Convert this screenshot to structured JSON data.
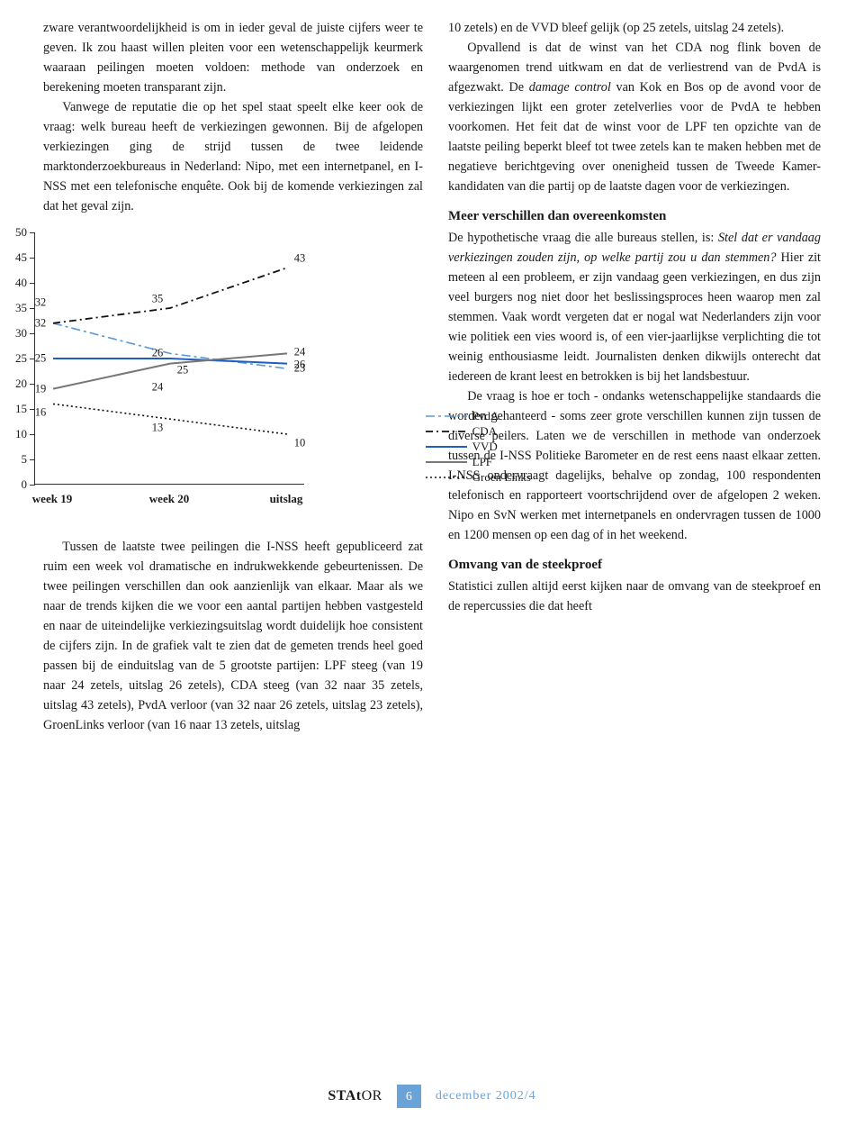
{
  "para1a": "zware verantwoordelijkheid is om in ieder geval de juiste cijfers weer te geven. Ik zou haast willen pleiten voor een wetenschappelijk keurmerk waaraan peilingen moeten voldoen: methode van onderzoek en berekening moeten transparant zijn.",
  "para1b": "Vanwege de reputatie die op het spel staat speelt elke keer ook de vraag: welk bureau heeft de verkiezingen gewonnen. Bij de afgelopen verkiezingen ging de strijd tussen de twee leidende marktonderzoekbureaus in Nederland: Nipo, met een internetpanel, en I-NSS met een telefonische enquête. Ook bij de komende verkiezingen zal dat het geval zijn.",
  "para2": "Tussen de laatste twee peilingen die I-NSS heeft gepubliceerd zat ruim een week vol dramatische en indrukwekkende gebeurtenissen. De twee peilingen verschillen dan ook aanzienlijk van elkaar. Maar als we naar de trends kijken die we voor een aantal partijen hebben vastgesteld en naar de uiteindelijke verkiezingsuitslag wordt duidelijk hoe consistent de cijfers zijn. In de grafiek valt te zien dat de gemeten trends heel goed passen bij de einduitslag van de 5 grootste partijen: LPF steeg (van 19 naar 24 zetels, uitslag 26 zetels), CDA steeg (van 32 naar 35 zetels, uitslag 43 zetels), PvdA verloor (van 32 naar 26 zetels, uitslag 23 zetels), GroenLinks verloor (van 16 naar 13 zetels, uitslag",
  "para3a": "10 zetels) en de VVD bleef gelijk (op 25 zetels, uitslag 24 zetels).",
  "para3b_pre": "Opvallend is dat de winst van het CDA nog flink boven de waargenomen trend uitkwam en dat de verliestrend van de PvdA is afgezwakt. De ",
  "para3b_em": "damage control",
  "para3b_post": " van Kok en Bos op de avond voor de verkiezingen lijkt een groter zetelverlies voor de PvdA te hebben voorkomen. Het feit dat de winst voor de LPF ten opzichte van de laatste peiling beperkt bleef tot twee zetels kan te maken hebben met de negatieve berichtgeving over onenigheid tussen de Tweede Kamer-kandidaten van die partij op de laatste dagen voor de verkiezingen.",
  "h_meer": "Meer verschillen dan overeenkomsten",
  "para4_pre": "De hypothetische vraag die alle bureaus stellen, is: ",
  "para4_em": "Stel dat er vandaag verkiezingen zouden zijn, op welke partij zou u dan stemmen?",
  "para4_post": " Hier zit meteen al een probleem, er zijn vandaag geen verkiezingen, en dus zijn veel burgers nog niet door het beslissingsproces heen waarop men zal stemmen. Vaak wordt vergeten dat er nogal wat Nederlanders zijn voor wie politiek een vies woord is, of een vier-jaarlijkse verplichting die tot weinig enthousiasme leidt. Journalisten denken dikwijls onterecht dat iedereen de krant leest en betrokken is bij het landsbestuur.",
  "para5": "De vraag is hoe er toch - ondanks wetenschappelijke standaards die worden gehanteerd - soms zeer grote verschillen kunnen zijn tussen de diverse peilers. Laten we de verschillen in methode van onderzoek tussen de I-NSS Politieke Barometer en de rest eens naast elkaar zetten. I-NSS ondervraagt dagelijks, behalve op zondag, 100 respondenten telefonisch en rapporteert voortschrijdend over de afgelopen 2 weken. Nipo en SvN werken met internetpanels en ondervragen tussen de 1000 en 1200 mensen op een dag of in het weekend.",
  "h_omvang": "Omvang van de steekproef",
  "para6": "Statistici zullen altijd eerst kijken naar de omvang van de steekproef en de repercussies die dat heeft",
  "chart": {
    "type": "line",
    "ylim": [
      0,
      50
    ],
    "ytick_step": 5,
    "yticks": [
      0,
      5,
      10,
      15,
      20,
      25,
      30,
      35,
      40,
      45,
      50
    ],
    "x_categories": [
      "week 19",
      "week 20",
      "uitslag"
    ],
    "series": {
      "PvdA": {
        "values": [
          32,
          26,
          23
        ],
        "color": "#5b9bd5",
        "dash": "10,4,3,4",
        "width": 1.6
      },
      "CDA": {
        "values": [
          32,
          35,
          43
        ],
        "color": "#111111",
        "dash": "8,4,2,4",
        "width": 1.8
      },
      "VVD": {
        "values": [
          25,
          25,
          24
        ],
        "color": "#1f5fbf",
        "dash": "",
        "width": 2
      },
      "LPF": {
        "values": [
          19,
          24,
          26
        ],
        "color": "#777777",
        "dash": "",
        "width": 2
      },
      "GroenLinks": {
        "values": [
          16,
          13,
          10
        ],
        "color": "#111111",
        "dash": "2,3",
        "width": 1.6
      }
    },
    "legend_order": [
      "PvdA",
      "CDA",
      "VVD",
      "LPF",
      "GroenLinks"
    ],
    "legend_labels": {
      "PvdA": "PvdA",
      "CDA": "CDA",
      "VVD": "VVD",
      "LPF": "LPF",
      "GroenLinks": "Groen Links"
    },
    "background_color": "#ffffff",
    "axis_color": "#333333",
    "label_fontsize": 13
  },
  "footer": {
    "magazine": "STAtOR",
    "page": "6",
    "issue": "december 2002/4"
  }
}
